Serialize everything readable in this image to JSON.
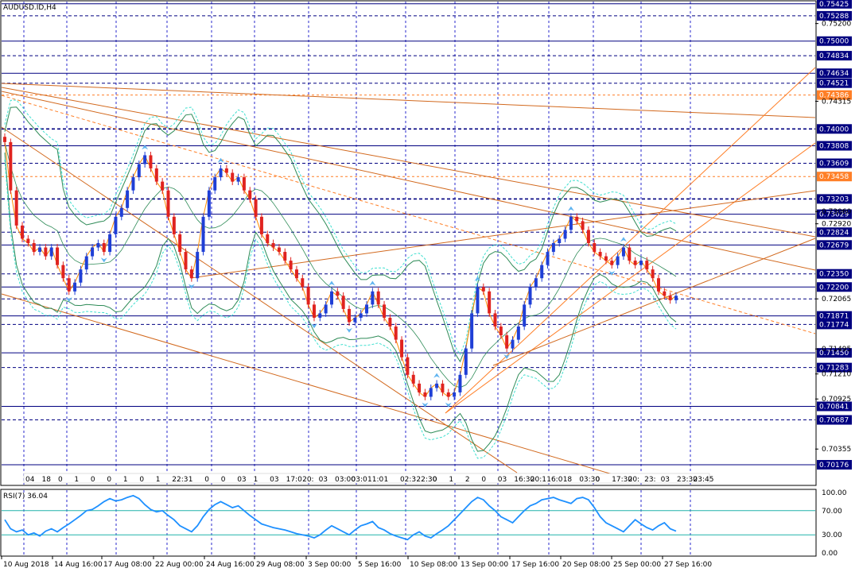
{
  "chart_data": {
    "type": "candlestick",
    "title": "AUDUSD.ID,H4",
    "y_axis": {
      "ticks": [
        "0.75200",
        "0.74315",
        "0.73060",
        "0.72920",
        "0.71495",
        "0.71210",
        "0.70925",
        "0.70355"
      ],
      "range": [
        0.6995,
        0.7545
      ]
    },
    "x_axis": {
      "ticks": [
        "10 Aug 2018",
        "14 Aug 16:00",
        "17 Aug 08:00",
        "22 Aug 00:00",
        "24 Aug 16:00",
        "29 Aug 08:00",
        "3 Sep 00:00",
        "5 Sep 16:00",
        "10 Sep 08:00",
        "13 Sep 00:00",
        "17 Sep 16:00",
        "20 Sep 08:00",
        "25 Sep 00:00",
        "27 Sep 16:00"
      ]
    },
    "price_levels": [
      {
        "value": 0.75425,
        "label": "0.75425",
        "style": "box"
      },
      {
        "value": 0.75288,
        "label": "0.75288",
        "style": "box"
      },
      {
        "value": 0.75,
        "label": "0.75000",
        "style": "box"
      },
      {
        "value": 0.74834,
        "label": "0.74834",
        "style": "box"
      },
      {
        "value": 0.74634,
        "label": "0.74634",
        "style": "box"
      },
      {
        "value": 0.74521,
        "label": "0.74521",
        "style": "box"
      },
      {
        "value": 0.74386,
        "label": "0.74386",
        "style": "orange"
      },
      {
        "value": 0.74,
        "label": "0.74000",
        "style": "box"
      },
      {
        "value": 0.73808,
        "label": "0.73808",
        "style": "box"
      },
      {
        "value": 0.73609,
        "label": "0.73609",
        "style": "box"
      },
      {
        "value": 0.73458,
        "label": "0.73458",
        "style": "orange"
      },
      {
        "value": 0.73203,
        "label": "0.73203",
        "style": "box"
      },
      {
        "value": 0.73029,
        "label": "0.73029",
        "style": "box"
      },
      {
        "value": 0.72824,
        "label": "0.72824",
        "style": "box"
      },
      {
        "value": 0.72679,
        "label": "0.72679",
        "style": "box"
      },
      {
        "value": 0.7235,
        "label": "0.72350",
        "style": "box"
      },
      {
        "value": 0.722,
        "label": "0.72200",
        "style": "box"
      },
      {
        "value": 0.72065,
        "label": "0.72065",
        "style": "plain"
      },
      {
        "value": 0.71871,
        "label": "0.71871",
        "style": "box"
      },
      {
        "value": 0.71774,
        "label": "0.71774",
        "style": "box"
      },
      {
        "value": 0.7145,
        "label": "0.71450",
        "style": "box"
      },
      {
        "value": 0.71283,
        "label": "0.71283",
        "style": "box"
      },
      {
        "value": 0.70841,
        "label": "0.70841",
        "style": "box"
      },
      {
        "value": 0.70687,
        "label": "0.70687",
        "style": "box"
      },
      {
        "value": 0.70176,
        "label": "0.70176",
        "style": "box"
      }
    ],
    "time_labels": [
      "04",
      "18",
      "0",
      "1",
      "0",
      "0",
      "1",
      "0",
      "1",
      "22:3",
      "1",
      "0",
      "0",
      "03",
      "1",
      "03",
      "17:0",
      "20:",
      "03",
      "03:00",
      "03:0",
      "11:0",
      "1",
      "02:3",
      "22:30",
      "0",
      "1",
      "2",
      "0",
      "03",
      "16:30",
      "20:1",
      "16:0",
      "18",
      "03:30",
      "0",
      "17:30",
      "20:",
      "23:",
      "03",
      "23:30",
      "23:45"
    ],
    "close_series": [
      0.7385,
      0.733,
      0.729,
      0.7275,
      0.727,
      0.726,
      0.7265,
      0.7255,
      0.7265,
      0.7245,
      0.723,
      0.7215,
      0.7225,
      0.724,
      0.7255,
      0.7265,
      0.727,
      0.726,
      0.728,
      0.73,
      0.731,
      0.733,
      0.7345,
      0.736,
      0.737,
      0.7355,
      0.734,
      0.733,
      0.73,
      0.728,
      0.726,
      0.724,
      0.723,
      0.726,
      0.73,
      0.733,
      0.7345,
      0.7355,
      0.735,
      0.734,
      0.7345,
      0.733,
      0.732,
      0.73,
      0.728,
      0.727,
      0.7265,
      0.726,
      0.725,
      0.724,
      0.723,
      0.722,
      0.72,
      0.7185,
      0.719,
      0.72,
      0.7215,
      0.721,
      0.7195,
      0.718,
      0.7185,
      0.719,
      0.72,
      0.7215,
      0.72,
      0.7185,
      0.7175,
      0.716,
      0.714,
      0.712,
      0.711,
      0.71,
      0.7095,
      0.7105,
      0.711,
      0.71,
      0.7095,
      0.71,
      0.712,
      0.715,
      0.719,
      0.722,
      0.7215,
      0.719,
      0.7175,
      0.7165,
      0.715,
      0.716,
      0.7175,
      0.72,
      0.722,
      0.723,
      0.7245,
      0.726,
      0.727,
      0.7275,
      0.7285,
      0.73,
      0.7295,
      0.7285,
      0.727,
      0.726,
      0.7255,
      0.725,
      0.7245,
      0.7255,
      0.7265,
      0.725,
      0.7245,
      0.725,
      0.724,
      0.723,
      0.7215,
      0.721,
      0.7205,
      0.721
    ],
    "rsi": {
      "label": "RSI(7) 36.04",
      "ticks": [
        "100.00",
        "70.00",
        "30.00",
        "0.00"
      ],
      "levels": [
        70,
        30
      ],
      "values": [
        55,
        40,
        35,
        38,
        30,
        33,
        28,
        36,
        40,
        35,
        42,
        48,
        55,
        62,
        70,
        72,
        78,
        85,
        90,
        86,
        88,
        92,
        95,
        90,
        80,
        72,
        68,
        70,
        62,
        55,
        45,
        40,
        35,
        45,
        60,
        72,
        80,
        85,
        80,
        75,
        78,
        70,
        62,
        55,
        48,
        45,
        42,
        40,
        38,
        35,
        32,
        30,
        28,
        25,
        30,
        38,
        45,
        40,
        35,
        30,
        38,
        45,
        48,
        52,
        42,
        38,
        32,
        28,
        25,
        22,
        30,
        35,
        28,
        25,
        32,
        38,
        45,
        55,
        65,
        75,
        85,
        92,
        88,
        78,
        70,
        60,
        55,
        50,
        60,
        70,
        78,
        82,
        88,
        90,
        92,
        88,
        85,
        82,
        90,
        92,
        88,
        75,
        60,
        50,
        45,
        40,
        35,
        45,
        55,
        48,
        42,
        38,
        45,
        50,
        40,
        36
      ]
    }
  }
}
